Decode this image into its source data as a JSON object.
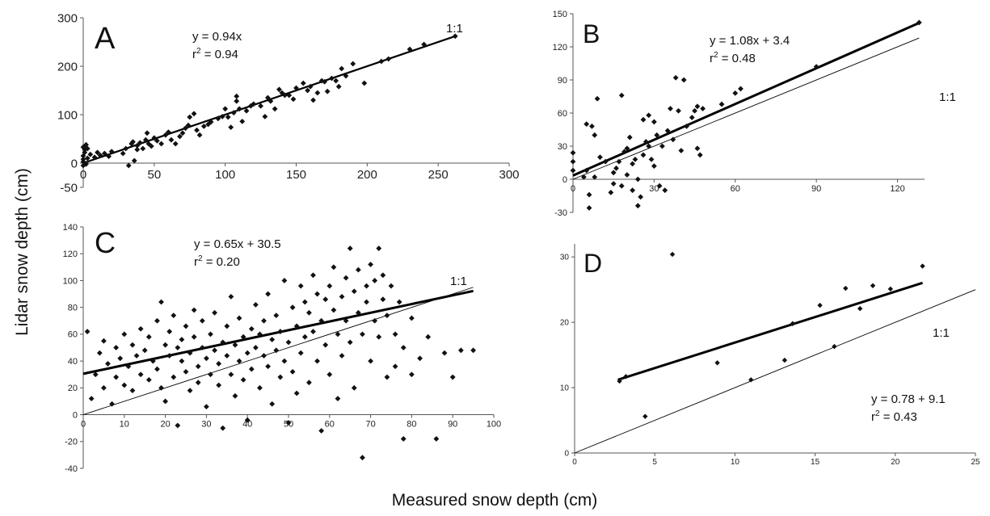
{
  "xlabel": "Measured snow depth (cm)",
  "ylabel": "Lidar snow depth (cm)",
  "colors": {
    "points": "#111111",
    "fit": "#000000",
    "one_to_one": "#000000"
  },
  "chart_data": [
    {
      "type": "scatter",
      "panel": "A",
      "equation": "y = 0.94x",
      "r2": "0.94",
      "one_to_one_label": "1:1",
      "xlim": [
        0,
        300
      ],
      "ylim": [
        -50,
        300
      ],
      "xticks": [
        0,
        50,
        100,
        150,
        200,
        250,
        300
      ],
      "yticks": [
        -50,
        0,
        100,
        200,
        300
      ],
      "fit": {
        "slope": 0.94,
        "intercept": 0,
        "x_range": [
          0,
          262
        ]
      },
      "one_to_one": {
        "x_range": [
          0,
          262
        ]
      },
      "points": [
        [
          0,
          -5
        ],
        [
          0,
          3
        ],
        [
          0,
          8
        ],
        [
          0,
          15
        ],
        [
          1,
          22
        ],
        [
          1,
          28
        ],
        [
          0,
          33
        ],
        [
          2,
          -2
        ],
        [
          3,
          10
        ],
        [
          2,
          38
        ],
        [
          3,
          30
        ],
        [
          5,
          18
        ],
        [
          8,
          12
        ],
        [
          10,
          22
        ],
        [
          12,
          16
        ],
        [
          15,
          20
        ],
        [
          18,
          14
        ],
        [
          20,
          24
        ],
        [
          28,
          20
        ],
        [
          30,
          30
        ],
        [
          32,
          -5
        ],
        [
          34,
          40
        ],
        [
          35,
          44
        ],
        [
          36,
          5
        ],
        [
          38,
          28
        ],
        [
          38,
          36
        ],
        [
          40,
          42
        ],
        [
          42,
          30
        ],
        [
          44,
          48
        ],
        [
          45,
          62
        ],
        [
          46,
          40
        ],
        [
          48,
          35
        ],
        [
          50,
          52
        ],
        [
          52,
          46
        ],
        [
          55,
          40
        ],
        [
          58,
          58
        ],
        [
          60,
          64
        ],
        [
          62,
          48
        ],
        [
          65,
          40
        ],
        [
          68,
          55
        ],
        [
          70,
          62
        ],
        [
          72,
          72
        ],
        [
          74,
          78
        ],
        [
          75,
          95
        ],
        [
          78,
          102
        ],
        [
          80,
          68
        ],
        [
          82,
          58
        ],
        [
          85,
          76
        ],
        [
          88,
          80
        ],
        [
          90,
          85
        ],
        [
          95,
          92
        ],
        [
          98,
          96
        ],
        [
          100,
          112
        ],
        [
          102,
          95
        ],
        [
          104,
          74
        ],
        [
          106,
          104
        ],
        [
          108,
          128
        ],
        [
          108,
          138
        ],
        [
          110,
          112
        ],
        [
          112,
          86
        ],
        [
          115,
          108
        ],
        [
          118,
          118
        ],
        [
          120,
          122
        ],
        [
          125,
          118
        ],
        [
          128,
          96
        ],
        [
          130,
          135
        ],
        [
          132,
          128
        ],
        [
          135,
          112
        ],
        [
          138,
          152
        ],
        [
          140,
          145
        ],
        [
          142,
          140
        ],
        [
          145,
          140
        ],
        [
          148,
          132
        ],
        [
          150,
          155
        ],
        [
          155,
          165
        ],
        [
          158,
          150
        ],
        [
          160,
          158
        ],
        [
          162,
          130
        ],
        [
          165,
          145
        ],
        [
          168,
          170
        ],
        [
          170,
          168
        ],
        [
          172,
          148
        ],
        [
          175,
          175
        ],
        [
          178,
          170
        ],
        [
          180,
          158
        ],
        [
          182,
          195
        ],
        [
          185,
          180
        ],
        [
          190,
          205
        ],
        [
          198,
          165
        ],
        [
          210,
          210
        ],
        [
          215,
          215
        ],
        [
          230,
          235
        ],
        [
          240,
          245
        ],
        [
          262,
          262
        ]
      ]
    },
    {
      "type": "scatter",
      "panel": "B",
      "equation": "y = 1.08x + 3.4",
      "r2": "0.48",
      "one_to_one_label": "1:1",
      "xlim": [
        0,
        130
      ],
      "ylim": [
        -30,
        150
      ],
      "xticks": [
        0,
        30,
        60,
        90,
        120
      ],
      "yticks": [
        -30,
        0,
        30,
        60,
        90,
        120,
        150
      ],
      "fit": {
        "slope": 1.08,
        "intercept": 3.4,
        "x_range": [
          0,
          128
        ]
      },
      "one_to_one": {
        "x_range": [
          0,
          128
        ]
      },
      "points": [
        [
          0,
          24
        ],
        [
          0,
          16
        ],
        [
          0,
          8
        ],
        [
          4,
          2
        ],
        [
          5,
          8
        ],
        [
          5,
          50
        ],
        [
          6,
          -14
        ],
        [
          6,
          -26
        ],
        [
          7,
          48
        ],
        [
          8,
          2
        ],
        [
          8,
          40
        ],
        [
          9,
          73
        ],
        [
          10,
          20
        ],
        [
          12,
          16
        ],
        [
          14,
          -12
        ],
        [
          15,
          -4
        ],
        [
          15,
          6
        ],
        [
          16,
          10
        ],
        [
          17,
          16
        ],
        [
          18,
          76
        ],
        [
          18,
          -6
        ],
        [
          19,
          25
        ],
        [
          20,
          28
        ],
        [
          20,
          4
        ],
        [
          21,
          38
        ],
        [
          22,
          14
        ],
        [
          22,
          -10
        ],
        [
          23,
          18
        ],
        [
          24,
          0
        ],
        [
          24,
          -24
        ],
        [
          25,
          -16
        ],
        [
          26,
          54
        ],
        [
          26,
          22
        ],
        [
          27,
          34
        ],
        [
          28,
          58
        ],
        [
          28,
          30
        ],
        [
          29,
          18
        ],
        [
          30,
          12
        ],
        [
          30,
          52
        ],
        [
          31,
          40
        ],
        [
          32,
          -6
        ],
        [
          33,
          30
        ],
        [
          34,
          -10
        ],
        [
          35,
          44
        ],
        [
          36,
          64
        ],
        [
          37,
          36
        ],
        [
          38,
          92
        ],
        [
          39,
          62
        ],
        [
          40,
          26
        ],
        [
          41,
          90
        ],
        [
          42,
          48
        ],
        [
          44,
          56
        ],
        [
          45,
          62
        ],
        [
          46,
          66
        ],
        [
          46,
          28
        ],
        [
          47,
          22
        ],
        [
          48,
          64
        ],
        [
          55,
          68
        ],
        [
          60,
          78
        ],
        [
          62,
          82
        ],
        [
          90,
          102
        ],
        [
          128,
          142
        ]
      ]
    },
    {
      "type": "scatter",
      "panel": "C",
      "equation": "y = 0.65x + 30.5",
      "r2": "0.20",
      "one_to_one_label": "1:1",
      "xlim": [
        0,
        100
      ],
      "ylim": [
        -40,
        140
      ],
      "xticks": [
        0,
        10,
        20,
        30,
        40,
        50,
        60,
        70,
        80,
        90,
        100
      ],
      "yticks": [
        -40,
        -20,
        0,
        20,
        40,
        60,
        80,
        100,
        120,
        140
      ],
      "fit": {
        "slope": 0.65,
        "intercept": 30.5,
        "x_range": [
          0,
          95
        ]
      },
      "one_to_one": {
        "x_range": [
          0,
          95
        ]
      },
      "points": [
        [
          1,
          62
        ],
        [
          2,
          12
        ],
        [
          3,
          30
        ],
        [
          4,
          46
        ],
        [
          5,
          55
        ],
        [
          5,
          20
        ],
        [
          6,
          38
        ],
        [
          7,
          8
        ],
        [
          8,
          28
        ],
        [
          8,
          50
        ],
        [
          9,
          42
        ],
        [
          10,
          60
        ],
        [
          10,
          22
        ],
        [
          11,
          36
        ],
        [
          12,
          52
        ],
        [
          12,
          18
        ],
        [
          13,
          44
        ],
        [
          14,
          30
        ],
        [
          14,
          64
        ],
        [
          15,
          48
        ],
        [
          16,
          26
        ],
        [
          16,
          58
        ],
        [
          17,
          40
        ],
        [
          18,
          70
        ],
        [
          18,
          34
        ],
        [
          19,
          84
        ],
        [
          19,
          20
        ],
        [
          20,
          52
        ],
        [
          20,
          10
        ],
        [
          21,
          44
        ],
        [
          21,
          62
        ],
        [
          22,
          28
        ],
        [
          22,
          74
        ],
        [
          23,
          50
        ],
        [
          23,
          -8
        ],
        [
          24,
          40
        ],
        [
          24,
          56
        ],
        [
          25,
          32
        ],
        [
          25,
          66
        ],
        [
          26,
          46
        ],
        [
          26,
          18
        ],
        [
          27,
          58
        ],
        [
          27,
          78
        ],
        [
          28,
          36
        ],
        [
          28,
          24
        ],
        [
          29,
          50
        ],
        [
          29,
          70
        ],
        [
          30,
          42
        ],
        [
          30,
          6
        ],
        [
          31,
          60
        ],
        [
          31,
          30
        ],
        [
          32,
          48
        ],
        [
          32,
          76
        ],
        [
          33,
          22
        ],
        [
          33,
          38
        ],
        [
          34,
          54
        ],
        [
          34,
          -10
        ],
        [
          35,
          66
        ],
        [
          35,
          44
        ],
        [
          36,
          30
        ],
        [
          36,
          88
        ],
        [
          37,
          52
        ],
        [
          37,
          14
        ],
        [
          38,
          40
        ],
        [
          38,
          72
        ],
        [
          39,
          58
        ],
        [
          39,
          26
        ],
        [
          40,
          46
        ],
        [
          40,
          -4
        ],
        [
          41,
          64
        ],
        [
          41,
          34
        ],
        [
          42,
          82
        ],
        [
          42,
          50
        ],
        [
          43,
          20
        ],
        [
          43,
          60
        ],
        [
          44,
          44
        ],
        [
          44,
          70
        ],
        [
          45,
          36
        ],
        [
          45,
          90
        ],
        [
          46,
          56
        ],
        [
          46,
          8
        ],
        [
          47,
          48
        ],
        [
          47,
          74
        ],
        [
          48,
          28
        ],
        [
          48,
          62
        ],
        [
          49,
          100
        ],
        [
          49,
          40
        ],
        [
          50,
          54
        ],
        [
          50,
          -6
        ],
        [
          51,
          80
        ],
        [
          51,
          32
        ],
        [
          52,
          66
        ],
        [
          52,
          16
        ],
        [
          53,
          96
        ],
        [
          53,
          46
        ],
        [
          54,
          58
        ],
        [
          54,
          84
        ],
        [
          55,
          24
        ],
        [
          55,
          76
        ],
        [
          56,
          62
        ],
        [
          56,
          104
        ],
        [
          57,
          40
        ],
        [
          57,
          90
        ],
        [
          58,
          70
        ],
        [
          58,
          -12
        ],
        [
          59,
          52
        ],
        [
          59,
          86
        ],
        [
          60,
          96
        ],
        [
          60,
          30
        ],
        [
          61,
          78
        ],
        [
          61,
          110
        ],
        [
          62,
          60
        ],
        [
          62,
          12
        ],
        [
          63,
          88
        ],
        [
          63,
          44
        ],
        [
          64,
          102
        ],
        [
          64,
          70
        ],
        [
          65,
          124
        ],
        [
          65,
          54
        ],
        [
          66,
          92
        ],
        [
          66,
          20
        ],
        [
          67,
          76
        ],
        [
          67,
          108
        ],
        [
          68,
          60
        ],
        [
          68,
          -32
        ],
        [
          69,
          96
        ],
        [
          69,
          84
        ],
        [
          70,
          112
        ],
        [
          70,
          40
        ],
        [
          71,
          70
        ],
        [
          71,
          100
        ],
        [
          72,
          124
        ],
        [
          72,
          58
        ],
        [
          73,
          86
        ],
        [
          73,
          104
        ],
        [
          74,
          74
        ],
        [
          74,
          28
        ],
        [
          75,
          96
        ],
        [
          76,
          60
        ],
        [
          76,
          36
        ],
        [
          77,
          84
        ],
        [
          78,
          -18
        ],
        [
          78,
          50
        ],
        [
          80,
          72
        ],
        [
          80,
          30
        ],
        [
          82,
          42
        ],
        [
          84,
          58
        ],
        [
          86,
          -18
        ],
        [
          88,
          46
        ],
        [
          90,
          28
        ],
        [
          92,
          48
        ],
        [
          95,
          48
        ]
      ]
    },
    {
      "type": "scatter",
      "panel": "D",
      "equation": "y = 0.78 + 9.1",
      "r2": "0.43",
      "one_to_one_label": "1:1",
      "xlim": [
        0,
        25
      ],
      "ylim": [
        0,
        32
      ],
      "xticks": [
        0,
        5,
        10,
        15,
        20,
        25
      ],
      "yticks": [
        0,
        10,
        20,
        30
      ],
      "fit": {
        "slope": 0.78,
        "intercept": 9.1,
        "x_range": [
          2.7,
          21.7
        ]
      },
      "one_to_one": {
        "x_range": [
          0,
          25
        ]
      },
      "points": [
        [
          2.8,
          11
        ],
        [
          3.2,
          11.7
        ],
        [
          4.4,
          5.6
        ],
        [
          6.1,
          30.4
        ],
        [
          8.9,
          13.8
        ],
        [
          11.0,
          11.2
        ],
        [
          13.1,
          14.2
        ],
        [
          13.6,
          19.8
        ],
        [
          15.3,
          22.6
        ],
        [
          16.2,
          16.3
        ],
        [
          16.9,
          25.2
        ],
        [
          17.8,
          22.1
        ],
        [
          18.6,
          25.6
        ],
        [
          19.7,
          25.1
        ],
        [
          21.7,
          28.6
        ]
      ]
    }
  ]
}
